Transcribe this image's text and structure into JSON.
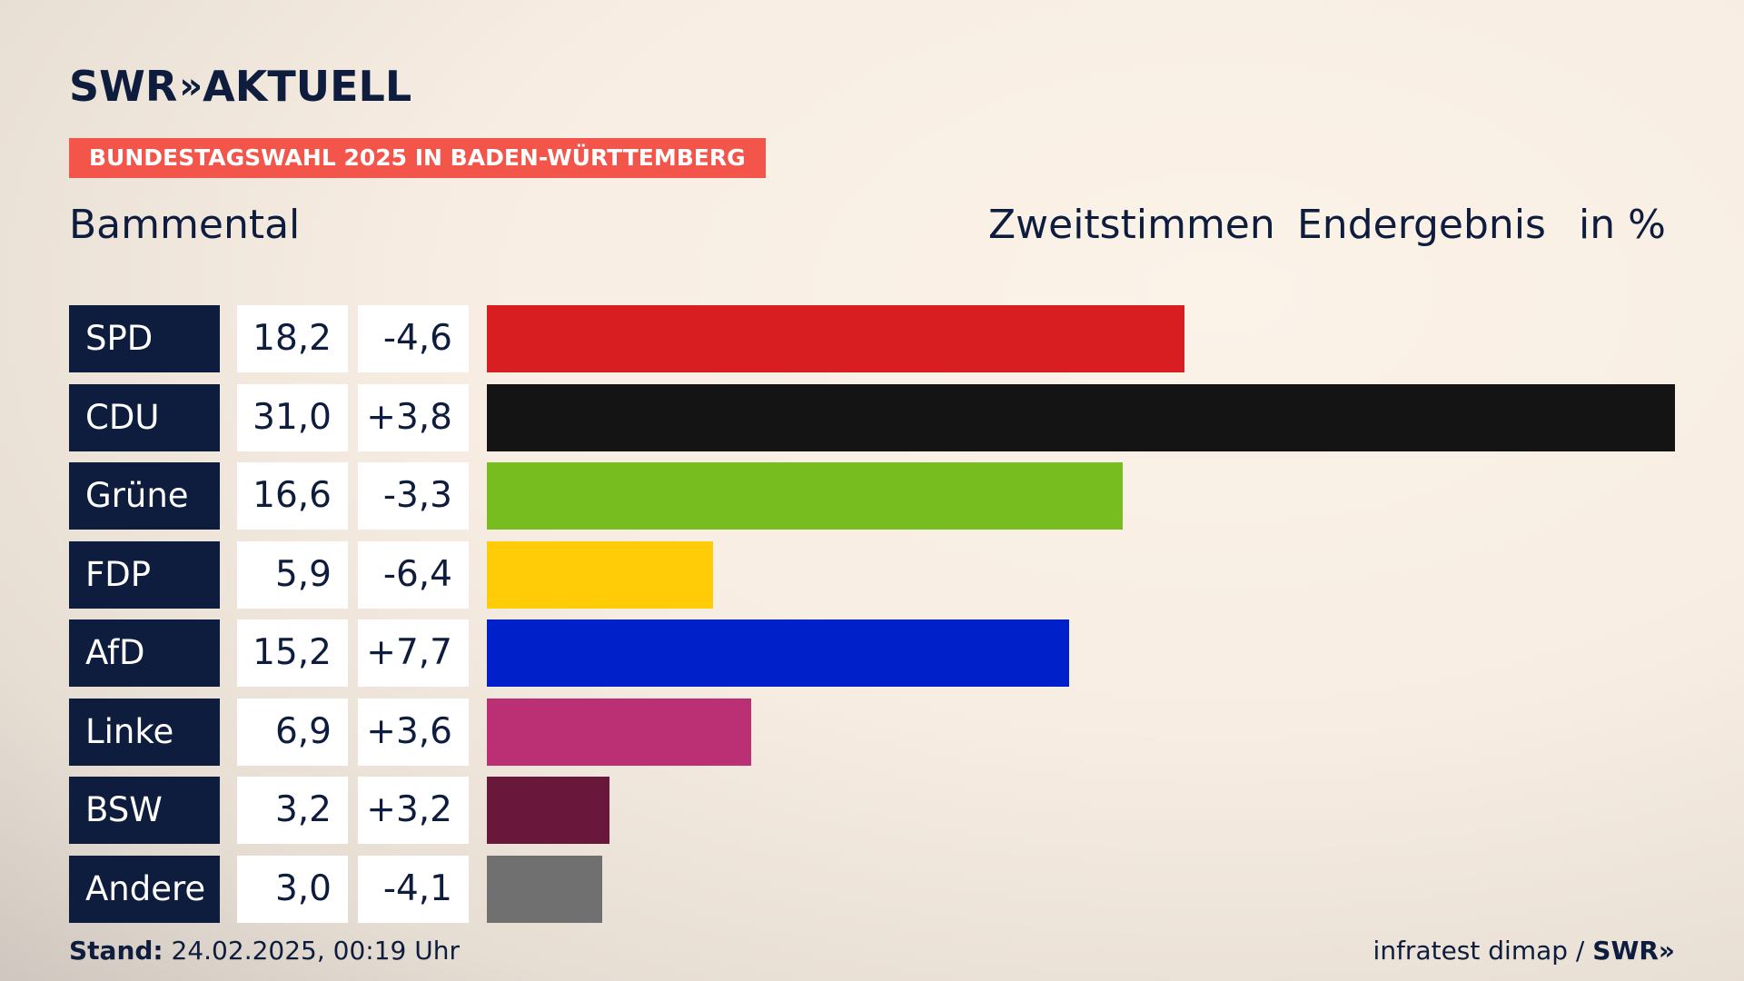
{
  "brand": {
    "name": "SWR",
    "chevrons": "»",
    "product": "AKTUELL"
  },
  "banner": "BUNDESTAGSWAHL 2025 IN BADEN-WÜRTTEMBERG",
  "region": "Bammental",
  "header": {
    "vote_type": "Zweitstimmen",
    "result_type": "Endergebnis",
    "unit": "in %"
  },
  "colors": {
    "navy": "#0e1d3d",
    "banner": "#f3554a"
  },
  "chart_data": {
    "type": "bar",
    "orientation": "horizontal",
    "categories": [
      "SPD",
      "CDU",
      "Grüne",
      "FDP",
      "AfD",
      "Linke",
      "BSW",
      "Andere"
    ],
    "values": [
      18.2,
      31.0,
      16.6,
      5.9,
      15.2,
      6.9,
      3.2,
      3.0
    ],
    "value_labels": [
      "18,2",
      "31,0",
      "16,6",
      "5,9",
      "15,2",
      "6,9",
      "3,2",
      "3,0"
    ],
    "diff_labels": [
      "-4,6",
      "+3,8",
      "-3,3",
      "-6,4",
      "+7,7",
      "+3,6",
      "+3,2",
      "-4,1"
    ],
    "colors": [
      "#d81e21",
      "#141414",
      "#78bd1f",
      "#ffcc07",
      "#0021c9",
      "#bb3075",
      "#6a173c",
      "#707070"
    ],
    "xlim": [
      0,
      31.0
    ],
    "grid": false
  },
  "footer": {
    "stand_label": "Stand:",
    "stand_value": "24.02.2025, 00:19 Uhr",
    "source": "infratest dimap /",
    "source_brand": "SWR",
    "source_chevrons": "»"
  }
}
